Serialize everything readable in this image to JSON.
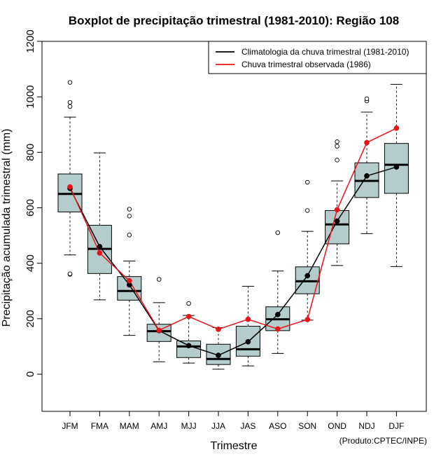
{
  "chart_data": {
    "type": "boxplot",
    "title": "Boxplot de precipitação trimestral (1981-2010): Região 108",
    "xlabel": "Trimestre",
    "ylabel": "Precipitação acumulada trimestral (mm)",
    "credit": "(Produto:CPTEC/INPE)",
    "ylim": [
      -130,
      1200
    ],
    "yticks": [
      0,
      200,
      400,
      600,
      800,
      1000,
      1200
    ],
    "categories": [
      "JFM",
      "FMA",
      "MAM",
      "AMJ",
      "MJJ",
      "JJA",
      "JAS",
      "ASO",
      "SON",
      "OND",
      "NDJ",
      "DJF"
    ],
    "boxes": [
      {
        "whisker_low": 430,
        "q1": 585,
        "median": 650,
        "q3": 722,
        "whisker_high": 927,
        "outliers": [
          360,
          362,
          965,
          980,
          1052
        ]
      },
      {
        "whisker_low": 268,
        "q1": 363,
        "median": 452,
        "q3": 537,
        "whisker_high": 798,
        "outliers": []
      },
      {
        "whisker_low": 140,
        "q1": 267,
        "median": 300,
        "q3": 352,
        "whisker_high": 408,
        "outliers": [
          502,
          570,
          595
        ]
      },
      {
        "whisker_low": 45,
        "q1": 118,
        "median": 155,
        "q3": 180,
        "whisker_high": 258,
        "outliers": [
          342
        ]
      },
      {
        "whisker_low": 40,
        "q1": 60,
        "median": 100,
        "q3": 120,
        "whisker_high": 212,
        "outliers": [
          255
        ]
      },
      {
        "whisker_low": 18,
        "q1": 35,
        "median": 55,
        "q3": 108,
        "whisker_high": 168,
        "outliers": []
      },
      {
        "whisker_low": 30,
        "q1": 65,
        "median": 90,
        "q3": 173,
        "whisker_high": 317,
        "outliers": []
      },
      {
        "whisker_low": 75,
        "q1": 157,
        "median": 198,
        "q3": 243,
        "whisker_high": 372,
        "outliers": [
          510
        ]
      },
      {
        "whisker_low": 195,
        "q1": 290,
        "median": 335,
        "q3": 387,
        "whisker_high": 515,
        "outliers": [
          590,
          692
        ]
      },
      {
        "whisker_low": 392,
        "q1": 470,
        "median": 540,
        "q3": 590,
        "whisker_high": 697,
        "outliers": [
          772,
          822,
          838
        ]
      },
      {
        "whisker_low": 507,
        "q1": 637,
        "median": 697,
        "q3": 762,
        "whisker_high": 945,
        "outliers": [
          985,
          993
        ]
      },
      {
        "whisker_low": 388,
        "q1": 652,
        "median": 755,
        "q3": 832,
        "whisker_high": 1045,
        "outliers": []
      }
    ],
    "series": [
      {
        "name": "Climatologia da chuva trimestral (1981-2010)",
        "color": "#000000",
        "values": [
          670,
          460,
          322,
          157,
          103,
          68,
          117,
          215,
          355,
          552,
          715,
          747
        ]
      },
      {
        "name": "Chuva trimestral observada (1986)",
        "color": "#e8141a",
        "values": [
          675,
          437,
          337,
          158,
          208,
          162,
          198,
          163,
          197,
          593,
          835,
          887
        ]
      }
    ],
    "box_fill": "#b5cccd",
    "legend_position": "top-right"
  }
}
